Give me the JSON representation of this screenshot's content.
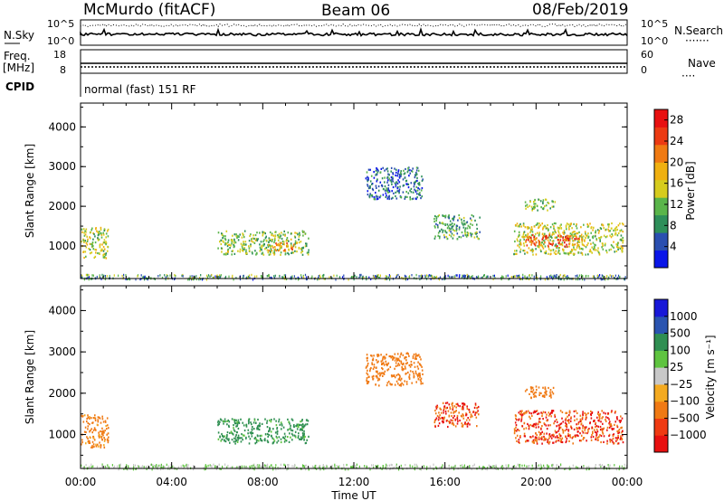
{
  "header": {
    "station": "McMurdo (fitACF)",
    "beam": "Beam 06",
    "date": "08/Feb/2019"
  },
  "noise_panel": {
    "left_label": "N.Sky",
    "right_label": "N.Search",
    "left_ticks": [
      "10^5",
      "10^0"
    ],
    "right_ticks": [
      "10^5",
      "10^0"
    ],
    "right_legend": "·······"
  },
  "freq_panel": {
    "left_label_1": "Freq.",
    "left_label_2": "[MHz]",
    "left_ticks": [
      "18",
      "8"
    ],
    "right_ticks": [
      "60",
      "0"
    ],
    "right_label": "Nave",
    "right_legend": "····"
  },
  "cpid_panel": {
    "label": "CPID",
    "mode": "normal (fast) 151 RF"
  },
  "colors": {
    "power_bar": [
      "#0a16e8",
      "#2a4fb0",
      "#2e8f5a",
      "#5ab54a",
      "#d6cc1e",
      "#f0b010",
      "#f07a12",
      "#ec3a12",
      "#e81010"
    ],
    "velocity_bar": [
      "#e81010",
      "#ef3a12",
      "#f07a14",
      "#f4aa20",
      "#c8c8c8",
      "#5fc440",
      "#2f8f52",
      "#2a54b0",
      "#1818d8"
    ]
  },
  "chart_data": [
    {
      "type": "heatmap",
      "title": "",
      "xlabel": "",
      "ylabel": "Slant Range [km]",
      "xlim": [
        "00:00",
        "24:00"
      ],
      "ylim": [
        180,
        4600
      ],
      "xticks": [
        "00:00",
        "04:00",
        "08:00",
        "12:00",
        "16:00",
        "20:00",
        "00:00"
      ],
      "yticks": [
        "1000",
        "2000",
        "3000",
        "4000"
      ],
      "colorbar": {
        "label": "Power [dB]",
        "ticks": [
          "4",
          "8",
          "12",
          "16",
          "20",
          "24",
          "28"
        ],
        "range": [
          0,
          30
        ]
      },
      "regions": [
        {
          "t_start": 0.0,
          "t_end": 1.2,
          "r_start": 700,
          "r_end": 1500,
          "value": 14
        },
        {
          "t_start": 6.0,
          "t_end": 10.0,
          "r_start": 800,
          "r_end": 1400,
          "value": 12
        },
        {
          "t_start": 8.2,
          "t_end": 9.5,
          "r_start": 900,
          "r_end": 1100,
          "value": 20
        },
        {
          "t_start": 12.5,
          "t_end": 15.0,
          "r_start": 2200,
          "r_end": 3000,
          "value": 6
        },
        {
          "t_start": 15.5,
          "t_end": 17.5,
          "r_start": 1200,
          "r_end": 1800,
          "value": 10
        },
        {
          "t_start": 19.0,
          "t_end": 23.8,
          "r_start": 800,
          "r_end": 1600,
          "value": 14
        },
        {
          "t_start": 19.5,
          "t_end": 22.0,
          "r_start": 1000,
          "r_end": 1300,
          "value": 24
        },
        {
          "t_start": 19.5,
          "t_end": 20.8,
          "r_start": 1900,
          "r_end": 2200,
          "value": 12
        }
      ]
    },
    {
      "type": "heatmap",
      "title": "",
      "xlabel": "Time UT",
      "ylabel": "Slant Range [km]",
      "xlim": [
        "00:00",
        "24:00"
      ],
      "ylim": [
        180,
        4600
      ],
      "xticks": [
        "00:00",
        "04:00",
        "08:00",
        "12:00",
        "16:00",
        "20:00",
        "00:00"
      ],
      "yticks": [
        "1000",
        "2000",
        "3000",
        "4000"
      ],
      "colorbar": {
        "label": "Velocity [m s⁻¹]",
        "ticks": [
          "1000",
          "500",
          "100",
          "25",
          "−25",
          "−100",
          "−500",
          "−1000"
        ]
      },
      "regions": [
        {
          "t_start": 0.0,
          "t_end": 1.2,
          "r_start": 700,
          "r_end": 1500,
          "value": -200
        },
        {
          "t_start": 6.0,
          "t_end": 10.0,
          "r_start": 800,
          "r_end": 1400,
          "value": 200
        },
        {
          "t_start": 12.5,
          "t_end": 15.0,
          "r_start": 2200,
          "r_end": 3000,
          "value": -300
        },
        {
          "t_start": 15.5,
          "t_end": 17.5,
          "r_start": 1200,
          "r_end": 1800,
          "value": -500
        },
        {
          "t_start": 19.0,
          "t_end": 23.8,
          "r_start": 800,
          "r_end": 1600,
          "value": -500
        },
        {
          "t_start": 19.5,
          "t_end": 20.8,
          "r_start": 1900,
          "r_end": 2200,
          "value": -300
        }
      ]
    }
  ]
}
